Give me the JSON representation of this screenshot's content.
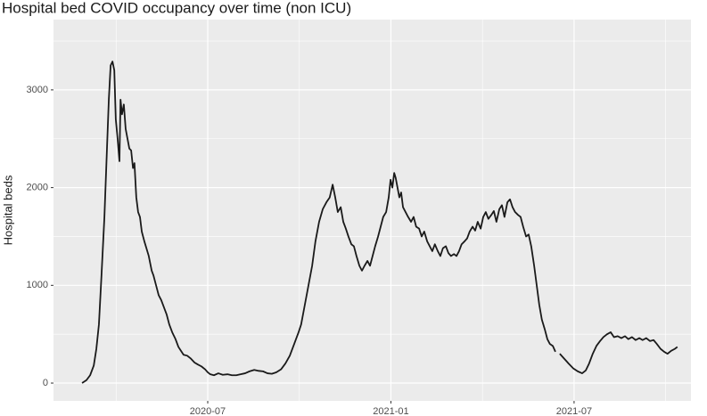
{
  "chart_data": {
    "type": "line",
    "title": "Hospital bed COVID occupancy over time (non ICU)",
    "y_label": "Hospital beds",
    "color": "#1a1a1a",
    "x": [
      2020.157,
      2020.169,
      2020.179,
      2020.189,
      2020.196,
      2020.203,
      2020.21,
      2020.218,
      2020.225,
      2020.23,
      2020.235,
      2020.24,
      2020.245,
      2020.249,
      2020.254,
      2020.259,
      2020.262,
      2020.266,
      2020.271,
      2020.276,
      2020.281,
      2020.286,
      2020.291,
      2020.296,
      2020.3,
      2020.305,
      2020.31,
      2020.315,
      2020.32,
      2020.327,
      2020.335,
      2020.339,
      2020.347,
      2020.352,
      2020.359,
      2020.366,
      2020.373,
      2020.381,
      2020.388,
      2020.395,
      2020.403,
      2020.412,
      2020.42,
      2020.427,
      2020.434,
      2020.444,
      2020.454,
      2020.464,
      2020.473,
      2020.483,
      2020.493,
      2020.5,
      2020.507,
      2020.517,
      2020.529,
      2020.541,
      2020.554,
      2020.566,
      2020.578,
      2020.59,
      2020.602,
      2020.614,
      2020.627,
      2020.639,
      2020.651,
      2020.663,
      2020.675,
      2020.687,
      2020.7,
      2020.712,
      2020.724,
      2020.736,
      2020.748,
      2020.755,
      2020.765,
      2020.775,
      2020.785,
      2020.794,
      2020.804,
      2020.814,
      2020.824,
      2020.833,
      2020.841,
      2020.848,
      2020.855,
      2020.863,
      2020.87,
      2020.877,
      2020.884,
      2020.892,
      2020.899,
      2020.906,
      2020.914,
      2020.921,
      2020.928,
      2020.936,
      2020.943,
      2020.95,
      2020.957,
      2020.965,
      2020.972,
      2020.979,
      2020.987,
      2020.994,
      2020.999,
      2021.004,
      2021.009,
      2021.013,
      2021.018,
      2021.023,
      2021.028,
      2021.033,
      2021.04,
      2021.047,
      2021.055,
      2021.062,
      2021.069,
      2021.077,
      2021.084,
      2021.091,
      2021.099,
      2021.106,
      2021.113,
      2021.12,
      2021.128,
      2021.135,
      2021.142,
      2021.15,
      2021.157,
      2021.164,
      2021.172,
      2021.179,
      2021.186,
      2021.193,
      2021.201,
      2021.208,
      2021.215,
      2021.223,
      2021.23,
      2021.237,
      2021.245,
      2021.252,
      2021.259,
      2021.266,
      2021.274,
      2021.281,
      2021.288,
      2021.296,
      2021.303,
      2021.31,
      2021.318,
      2021.325,
      2021.332,
      2021.339,
      2021.347,
      2021.354,
      2021.361,
      2021.369,
      2021.376,
      2021.383,
      2021.391,
      2021.398,
      2021.405,
      2021.412,
      2021.42,
      2021.427,
      2021.434,
      2021.442,
      2021.449,
      2021.455,
      2021.461,
      2021.473,
      2021.485,
      2021.498,
      2021.51,
      2021.522,
      2021.532,
      2021.541,
      2021.551,
      2021.561,
      2021.571,
      2021.58,
      2021.59,
      2021.6,
      2021.609,
      2021.619,
      2021.629,
      2021.639,
      2021.648,
      2021.658,
      2021.668,
      2021.678,
      2021.687,
      2021.697,
      2021.707,
      2021.717,
      2021.726,
      2021.736,
      2021.746,
      2021.755,
      2021.765,
      2021.775,
      2021.782
    ],
    "values": [
      0,
      30,
      80,
      180,
      350,
      600,
      1100,
      1700,
      2400,
      2900,
      3250,
      3290,
      3200,
      2700,
      2500,
      2270,
      2900,
      2750,
      2850,
      2600,
      2500,
      2400,
      2380,
      2200,
      2250,
      1900,
      1750,
      1700,
      1550,
      1450,
      1350,
      1300,
      1150,
      1100,
      1000,
      900,
      850,
      770,
      700,
      600,
      520,
      450,
      370,
      330,
      290,
      280,
      250,
      210,
      190,
      170,
      140,
      110,
      90,
      80,
      100,
      85,
      90,
      80,
      80,
      90,
      100,
      120,
      135,
      125,
      120,
      100,
      95,
      110,
      140,
      200,
      280,
      400,
      520,
      600,
      800,
      1000,
      1200,
      1450,
      1650,
      1780,
      1850,
      1900,
      2030,
      1900,
      1750,
      1800,
      1650,
      1580,
      1500,
      1420,
      1400,
      1300,
      1200,
      1150,
      1200,
      1250,
      1200,
      1300,
      1400,
      1500,
      1600,
      1700,
      1750,
      1900,
      2080,
      2000,
      2150,
      2100,
      2000,
      1900,
      1950,
      1800,
      1750,
      1700,
      1650,
      1700,
      1600,
      1580,
      1500,
      1550,
      1450,
      1400,
      1350,
      1420,
      1350,
      1300,
      1380,
      1400,
      1330,
      1300,
      1320,
      1300,
      1350,
      1420,
      1450,
      1480,
      1550,
      1600,
      1560,
      1650,
      1580,
      1700,
      1750,
      1680,
      1720,
      1760,
      1650,
      1780,
      1820,
      1700,
      1850,
      1880,
      1800,
      1750,
      1720,
      1700,
      1600,
      1500,
      1520,
      1400,
      1200,
      1000,
      800,
      650,
      550,
      450,
      400,
      380,
      320,
      null,
      300,
      250,
      200,
      150,
      120,
      100,
      130,
      200,
      300,
      380,
      430,
      470,
      500,
      520,
      470,
      480,
      460,
      480,
      450,
      470,
      440,
      460,
      440,
      460,
      430,
      440,
      400,
      350,
      320,
      300,
      330,
      350,
      370
    ],
    "xlim": [
      2020.079,
      2021.819
    ],
    "xticks": [
      {
        "value": 2020.5,
        "label": "2020-07"
      },
      {
        "value": 2021.0,
        "label": "2021-01"
      },
      {
        "value": 2021.5,
        "label": "2021-07"
      }
    ],
    "x_minor_grid": [
      2020.25,
      2020.75,
      2021.25,
      2021.75
    ],
    "ylim": [
      -182,
      3719
    ],
    "yticks": [
      0,
      1000,
      2000,
      3000
    ],
    "y_minor_grid": [
      500,
      1500,
      2500,
      3500
    ],
    "grid": true
  }
}
